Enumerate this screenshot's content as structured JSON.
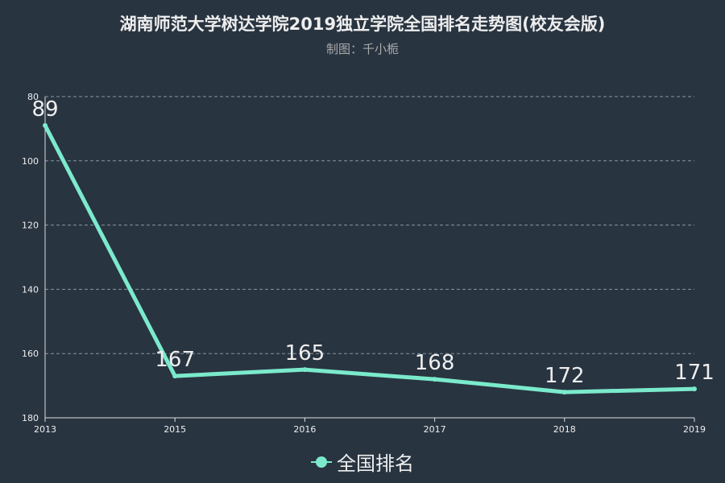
{
  "chart_data": {
    "type": "line",
    "title": "湖南师范大学树达学院2019独立学院全国排名走势图(校友会版)",
    "subtitle": "制图：千小栀",
    "categories": [
      "2013",
      "2015",
      "2016",
      "2017",
      "2018",
      "2019"
    ],
    "series": [
      {
        "name": "全国排名",
        "values": [
          89,
          167,
          165,
          168,
          172,
          171
        ],
        "color": "#7beacc"
      }
    ],
    "y_ticks": [
      "80",
      "100",
      "120",
      "140",
      "160",
      "180"
    ],
    "ylim": [
      80,
      180
    ],
    "y_inverted": true,
    "grid": true,
    "legend_position": "bottom-center"
  }
}
